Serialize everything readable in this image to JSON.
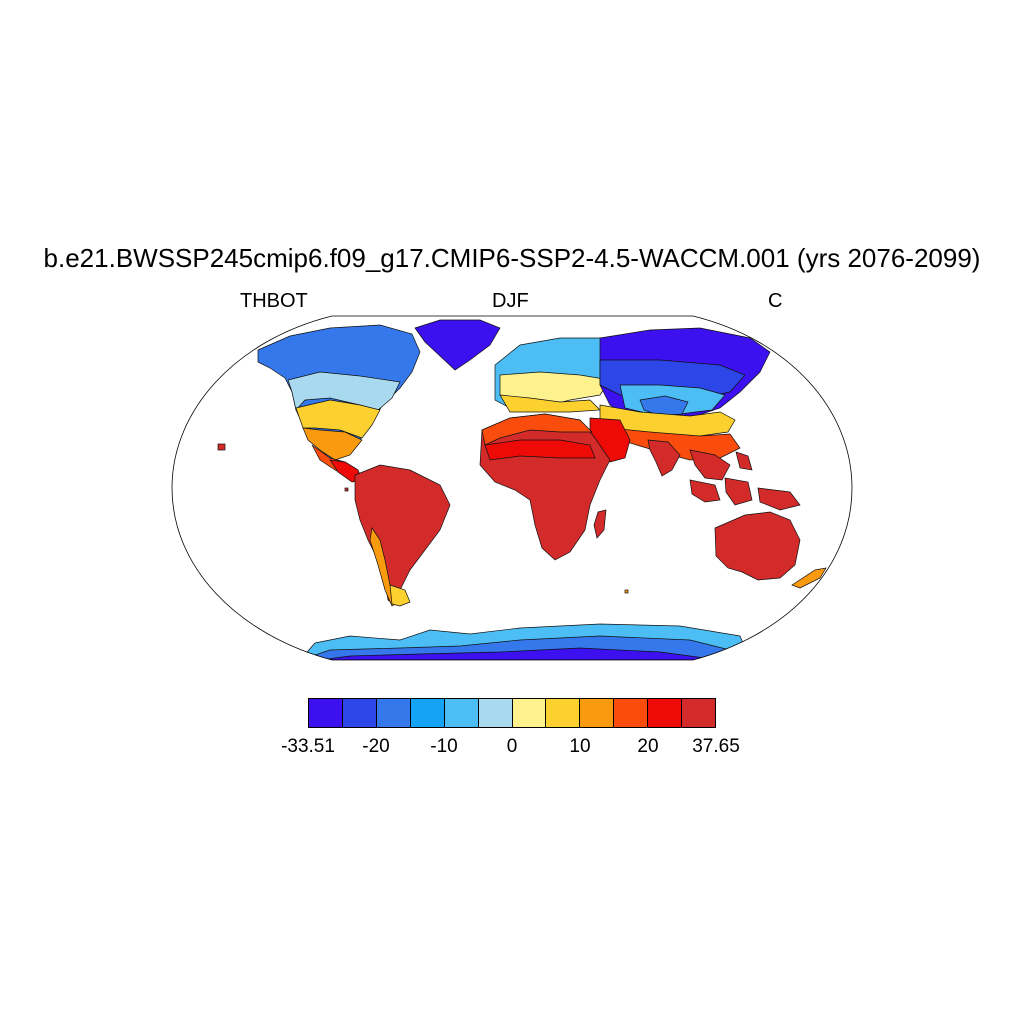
{
  "title": "b.e21.BWSSP245cmip6.f09_g17.CMIP6-SSP2-4.5-WACCM.001 (yrs 2076-2099)",
  "left_label": "THBOT",
  "center_label": "DJF",
  "right_label": "C",
  "colorbar": {
    "colors": [
      "#3d10f0",
      "#2c46e8",
      "#3478eb",
      "#14a3f5",
      "#4cbef5",
      "#a9d9ef",
      "#fef28f",
      "#fcd02e",
      "#fa9a0e",
      "#fa4c0c",
      "#ee0a06",
      "#d32a2a"
    ],
    "tick_labels": [
      "-33.51",
      "-20",
      "-10",
      "0",
      "10",
      "20",
      "37.65"
    ]
  },
  "map": {
    "projection": "Robinson",
    "variable": "THBOT",
    "season": "DJF",
    "units": "C",
    "min": -33.51,
    "max": 37.65
  }
}
